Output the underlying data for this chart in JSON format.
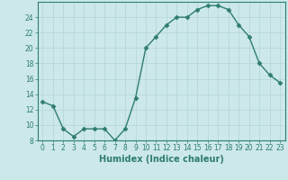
{
  "x": [
    0,
    1,
    2,
    3,
    4,
    5,
    6,
    7,
    8,
    9,
    10,
    11,
    12,
    13,
    14,
    15,
    16,
    17,
    18,
    19,
    20,
    21,
    22,
    23
  ],
  "y": [
    13,
    12.5,
    9.5,
    8.5,
    9.5,
    9.5,
    9.5,
    8,
    9.5,
    13.5,
    20,
    21.5,
    23,
    24,
    24,
    25,
    25.5,
    25.5,
    25,
    23,
    21.5,
    18,
    16.5,
    15.5
  ],
  "line_color": "#2e7d6e",
  "marker": "D",
  "marker_size": 2.5,
  "bg_color": "#cce8e8",
  "grid_color": "#b8d8d8",
  "xlabel": "Humidex (Indice chaleur)",
  "ylim": [
    8,
    26
  ],
  "xlim": [
    -0.5,
    23.5
  ],
  "yticks": [
    8,
    10,
    12,
    14,
    16,
    18,
    20,
    22,
    24
  ],
  "xticks": [
    0,
    1,
    2,
    3,
    4,
    5,
    6,
    7,
    8,
    9,
    10,
    11,
    12,
    13,
    14,
    15,
    16,
    17,
    18,
    19,
    20,
    21,
    22,
    23
  ],
  "tick_label_fontsize": 5.5,
  "xlabel_fontsize": 7,
  "line_width": 1.0
}
